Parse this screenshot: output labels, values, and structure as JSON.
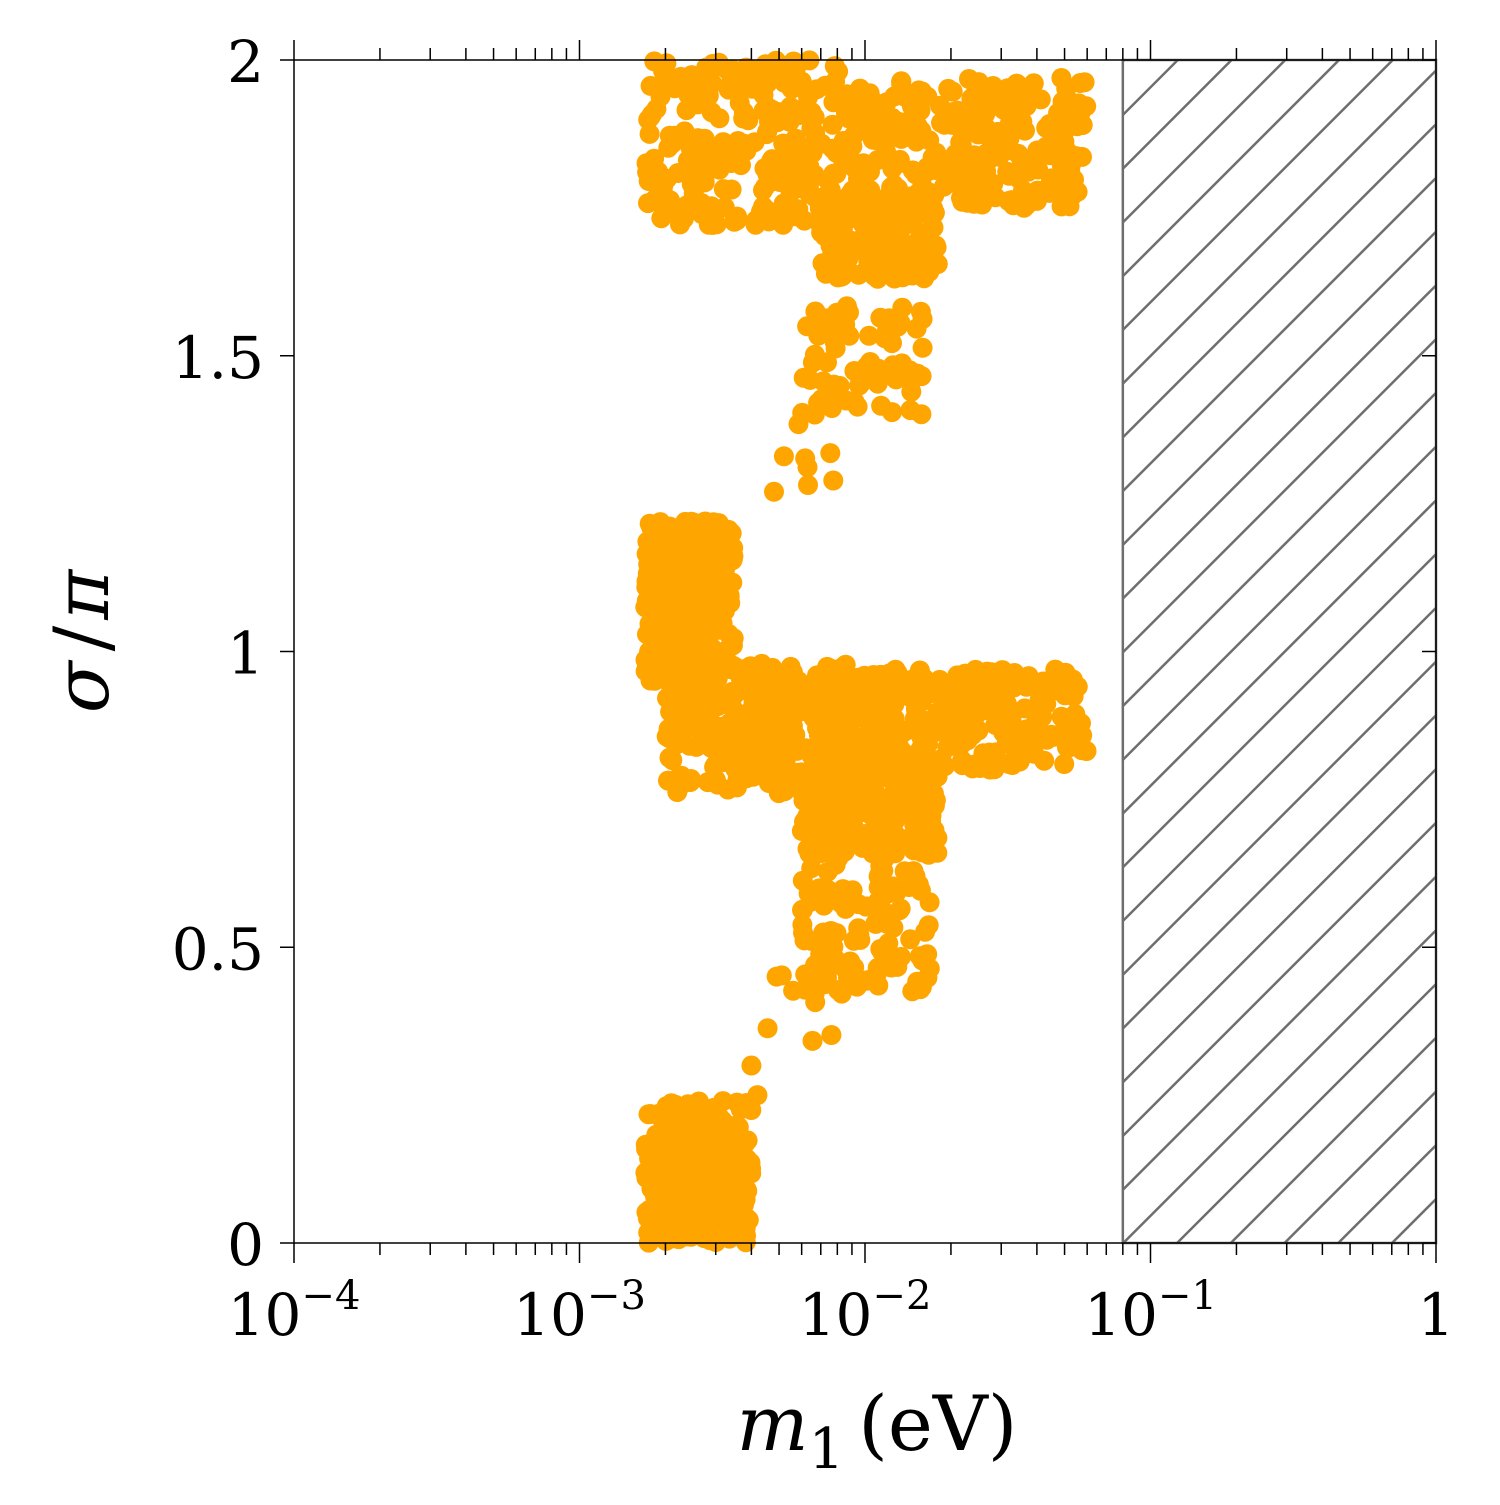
{
  "chart_data": {
    "type": "scatter",
    "x_scale": "log",
    "xlim": [
      0.0001,
      1
    ],
    "ylim": [
      0,
      2
    ],
    "xlabel": {
      "var": "m",
      "sub": "1",
      "unit": "(eV)"
    },
    "ylabel": {
      "var": "σ",
      "sep": "/",
      "den": "π"
    },
    "x_ticks": [
      {
        "value": 0.0001,
        "base": "10",
        "exp": "−4"
      },
      {
        "value": 0.001,
        "base": "10",
        "exp": "−3"
      },
      {
        "value": 0.01,
        "base": "10",
        "exp": "−2"
      },
      {
        "value": 0.1,
        "base": "10",
        "exp": "−1"
      },
      {
        "value": 1,
        "base": "1",
        "exp": ""
      }
    ],
    "y_ticks": [
      {
        "value": 0,
        "label": "0"
      },
      {
        "value": 0.5,
        "label": "0.5"
      },
      {
        "value": 1,
        "label": "1"
      },
      {
        "value": 1.5,
        "label": "1.5"
      },
      {
        "value": 2,
        "label": "2"
      }
    ],
    "marker_color": "#FFA500",
    "excluded_region": {
      "x_min": 0.08,
      "x_max": 1,
      "fill": "hatched",
      "color": "#6e6e6e"
    },
    "grid": false,
    "series": [
      {
        "regions": [
          {
            "name": "upper-arm-left",
            "xmin": 0.0017,
            "xmax": 0.009,
            "ymin": 1.72,
            "ymax": 2.0,
            "n": 260
          },
          {
            "name": "upper-arm-right",
            "xmin": 0.009,
            "xmax": 0.06,
            "ymin": 1.75,
            "ymax": 1.97,
            "n": 260
          },
          {
            "name": "upper-neck",
            "xmin": 0.007,
            "xmax": 0.018,
            "ymin": 1.63,
            "ymax": 1.78,
            "n": 180
          },
          {
            "name": "upper-stem",
            "xmin": 0.006,
            "xmax": 0.016,
            "ymin": 1.4,
            "ymax": 1.6,
            "n": 80
          },
          {
            "name": "upper-trail",
            "xmin": 0.0045,
            "xmax": 0.008,
            "ymin": 1.28,
            "ymax": 1.4,
            "n": 6
          },
          {
            "name": "middle-bulge",
            "xmin": 0.0017,
            "xmax": 0.0035,
            "ymin": 0.95,
            "ymax": 1.22,
            "n": 320
          },
          {
            "name": "middle-arm-left",
            "xmin": 0.002,
            "xmax": 0.009,
            "ymin": 0.76,
            "ymax": 0.98,
            "n": 320
          },
          {
            "name": "middle-arm-right",
            "xmin": 0.009,
            "xmax": 0.06,
            "ymin": 0.8,
            "ymax": 0.97,
            "n": 260
          },
          {
            "name": "middle-neck",
            "xmin": 0.006,
            "xmax": 0.018,
            "ymin": 0.65,
            "ymax": 0.82,
            "n": 220
          },
          {
            "name": "lower-stem",
            "xmin": 0.006,
            "xmax": 0.017,
            "ymin": 0.42,
            "ymax": 0.64,
            "n": 120
          },
          {
            "name": "lower-trail",
            "xmin": 0.0045,
            "xmax": 0.008,
            "ymin": 0.34,
            "ymax": 0.46,
            "n": 10
          },
          {
            "name": "bottom-blob",
            "xmin": 0.0017,
            "xmax": 0.004,
            "ymin": 0.0,
            "ymax": 0.24,
            "n": 260
          }
        ],
        "extra_points": [
          {
            "x": 0.004,
            "y": 0.3
          },
          {
            "x": 0.0042,
            "y": 0.25
          },
          {
            "x": 0.0048,
            "y": 1.27
          },
          {
            "x": 0.0052,
            "y": 1.33
          }
        ]
      }
    ]
  }
}
